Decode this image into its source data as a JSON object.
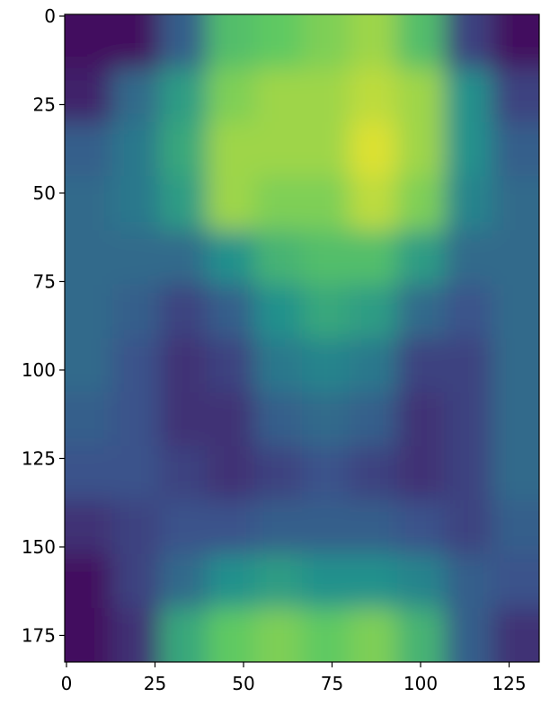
{
  "chart_data": {
    "type": "heatmap",
    "colormap": "viridis",
    "xlim": [
      -0.5,
      133.5
    ],
    "ylim": [
      182.5,
      -0.5
    ],
    "xticks": [
      0,
      25,
      50,
      75,
      100,
      125
    ],
    "yticks": [
      0,
      25,
      50,
      75,
      100,
      125,
      150,
      175
    ],
    "values": [
      [
        0.05,
        0.05,
        0.3,
        0.7,
        0.75,
        0.8,
        0.85,
        0.7,
        0.2,
        0.05
      ],
      [
        0.1,
        0.35,
        0.55,
        0.8,
        0.85,
        0.85,
        0.9,
        0.85,
        0.5,
        0.2
      ],
      [
        0.3,
        0.4,
        0.6,
        0.85,
        0.85,
        0.85,
        0.95,
        0.85,
        0.5,
        0.3
      ],
      [
        0.35,
        0.4,
        0.55,
        0.85,
        0.8,
        0.8,
        0.9,
        0.8,
        0.45,
        0.35
      ],
      [
        0.35,
        0.35,
        0.35,
        0.5,
        0.65,
        0.7,
        0.7,
        0.55,
        0.35,
        0.35
      ],
      [
        0.35,
        0.3,
        0.2,
        0.3,
        0.5,
        0.6,
        0.55,
        0.35,
        0.25,
        0.35
      ],
      [
        0.35,
        0.25,
        0.15,
        0.2,
        0.4,
        0.45,
        0.4,
        0.2,
        0.2,
        0.35
      ],
      [
        0.3,
        0.25,
        0.15,
        0.15,
        0.3,
        0.35,
        0.3,
        0.15,
        0.2,
        0.35
      ],
      [
        0.25,
        0.25,
        0.2,
        0.15,
        0.2,
        0.25,
        0.2,
        0.15,
        0.2,
        0.35
      ],
      [
        0.15,
        0.2,
        0.25,
        0.25,
        0.3,
        0.3,
        0.3,
        0.25,
        0.2,
        0.3
      ],
      [
        0.05,
        0.2,
        0.35,
        0.5,
        0.55,
        0.5,
        0.5,
        0.45,
        0.3,
        0.25
      ],
      [
        0.05,
        0.15,
        0.6,
        0.75,
        0.8,
        0.75,
        0.8,
        0.65,
        0.3,
        0.15
      ]
    ]
  }
}
